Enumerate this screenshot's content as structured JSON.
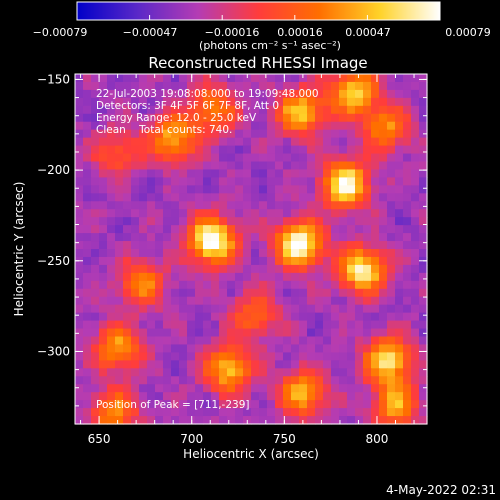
{
  "chart_data": {
    "type": "heatmap",
    "title": "Reconstructed RHESSI Image",
    "xlabel": "Heliocentric X (arcsec)",
    "ylabel": "Heliocentric Y (arcsec)",
    "xlim": [
      637,
      827
    ],
    "ylim": [
      -340,
      -147
    ],
    "xticks": [
      650,
      700,
      750,
      800
    ],
    "yticks": [
      -150,
      -200,
      -250,
      -300
    ],
    "xtick_labels": [
      "650",
      "700",
      "750",
      "800"
    ],
    "ytick_labels": [
      "−150",
      "−200",
      "−250",
      "−300"
    ],
    "colorbar": {
      "range": [
        -0.00079,
        0.00079
      ],
      "tick_labels": [
        "−0.00079",
        "−0.00047",
        "−0.00016",
        "0.00016",
        "0.00047",
        "0.00079"
      ],
      "unit_label": "(photons cm⁻² s⁻¹ asec⁻²)",
      "colors": [
        "#0000c8",
        "#5a28c8",
        "#b43cb4",
        "#ff3c3c",
        "#ff6e00",
        "#ffd228",
        "#ffffff"
      ]
    },
    "annotations": [
      "22-Jul-2003 19:08:08.000 to 19:09:48.000",
      "Detectors: 3F 4F 5F 6F 7F 8F, Att 0",
      "Energy Range: 12.0 - 25.0 keV",
      "Clean    Total counts: 740.",
      "Position of Peak = [711,-239]"
    ],
    "sources": [
      {
        "x": 711,
        "y": -239,
        "amp": 1.0
      },
      {
        "x": 758,
        "y": -241,
        "amp": 0.95
      },
      {
        "x": 792,
        "y": -255,
        "amp": 0.85
      },
      {
        "x": 783,
        "y": -208,
        "amp": 0.9
      },
      {
        "x": 759,
        "y": -168,
        "amp": 0.7
      },
      {
        "x": 787,
        "y": -157,
        "amp": 0.75
      },
      {
        "x": 805,
        "y": -177,
        "amp": 0.55
      },
      {
        "x": 806,
        "y": -305,
        "amp": 0.8
      },
      {
        "x": 720,
        "y": -310,
        "amp": 0.7
      },
      {
        "x": 760,
        "y": -323,
        "amp": 0.65
      },
      {
        "x": 660,
        "y": -298,
        "amp": 0.6
      },
      {
        "x": 673,
        "y": -262,
        "amp": 0.55
      },
      {
        "x": 690,
        "y": -183,
        "amp": 0.65
      },
      {
        "x": 711,
        "y": -166,
        "amp": 0.55
      },
      {
        "x": 734,
        "y": -280,
        "amp": 0.45
      },
      {
        "x": 658,
        "y": -334,
        "amp": 0.55
      },
      {
        "x": 810,
        "y": -330,
        "amp": 0.6
      },
      {
        "x": 660,
        "y": -190,
        "amp": 0.4
      }
    ]
  },
  "footer": {
    "timestamp": "4-May-2022 02:31"
  }
}
